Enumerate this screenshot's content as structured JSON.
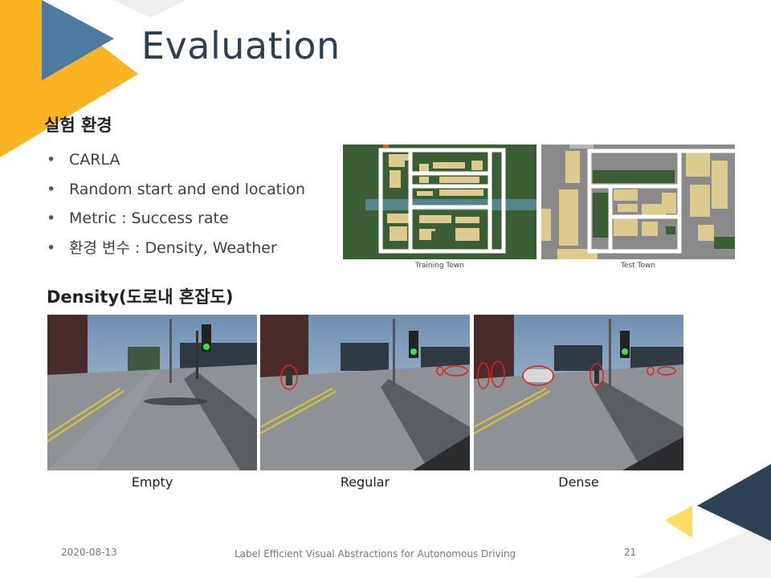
{
  "slide": {
    "title": "Evaluation",
    "section1_heading": "실험 환경",
    "bullets": [
      "CARLA",
      "Random start and end location",
      "Metric : Success rate",
      "환경 변수 : Density, Weather"
    ],
    "section2_heading": "Density(도로내 혼잡도)"
  },
  "maps": {
    "training_caption": "Training Town",
    "test_caption": "Test Town"
  },
  "scenes": [
    {
      "caption": "Empty"
    },
    {
      "caption": "Regular"
    },
    {
      "caption": "Dense"
    }
  ],
  "footer": {
    "date": "2020-08-13",
    "talk_title": "Label Efficient Visual Abstractions for Autonomous  Driving",
    "page_number": "21"
  },
  "colors": {
    "title": "#2e3f51",
    "accent_yellow": "#fbb321",
    "accent_blue": "#4d7a9e",
    "accent_navy": "#2e4257",
    "accent_light_yellow": "#fddc63"
  }
}
